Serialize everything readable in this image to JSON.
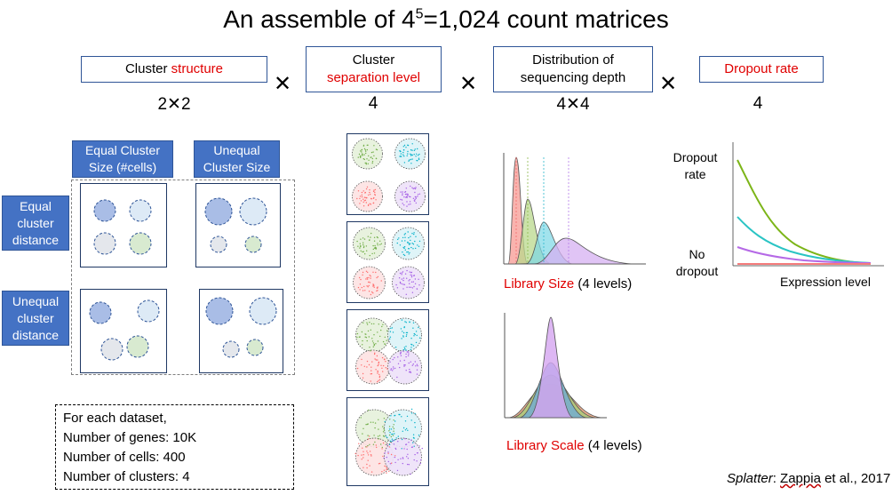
{
  "title": {
    "prefix": "An assemble of 4",
    "exponent": "5",
    "suffix": "=1,024 count matrices"
  },
  "factors": [
    {
      "line1_black": "Cluster ",
      "line1_red": "structure",
      "count": "2✕2"
    },
    {
      "line1_black": "Cluster",
      "line2_red": "separation level",
      "count": "4"
    },
    {
      "line1_black": "Distribution of",
      "line2_black": "sequencing depth",
      "count": "4✕4"
    },
    {
      "line1_red": "Dropout rate",
      "count": "4"
    }
  ],
  "times_symbol": "✕",
  "structure": {
    "col_labels": [
      {
        "line1": "Equal Cluster",
        "line2": "Size (#cells)"
      },
      {
        "line1": "Unequal",
        "line2": "Cluster Size"
      }
    ],
    "row_labels": [
      {
        "line1": "Equal",
        "line2": "cluster",
        "line3": "distance"
      },
      {
        "line1": "Unequal",
        "line2": "cluster",
        "line3": "distance"
      }
    ]
  },
  "info": {
    "line1": "For each dataset,",
    "line2": "Number of genes: 10K",
    "line3": "Number of cells: 400",
    "line4": "Number of clusters: 4"
  },
  "library_size": {
    "red": "Library Size",
    "black": " (4 levels)"
  },
  "library_scale": {
    "red": "Library Scale",
    "black": " (4 levels)"
  },
  "dropout": {
    "ylabel_top_1": "Dropout",
    "ylabel_top_2": "rate",
    "ylabel_bottom_1": "No",
    "ylabel_bottom_2": "dropout",
    "xlabel": "Expression level"
  },
  "citation": {
    "italic": "Splatter",
    "rest_1": ": ",
    "author": "Zappia",
    "rest_2": " et al., 2017"
  },
  "colors": {
    "accent_blue": "#4472c4",
    "red_text": "#e00000",
    "cluster_green": "#70ad47",
    "cluster_cyan": "#00b0c8",
    "cluster_red": "#ff6b6b",
    "cluster_purple": "#a45ee5"
  }
}
